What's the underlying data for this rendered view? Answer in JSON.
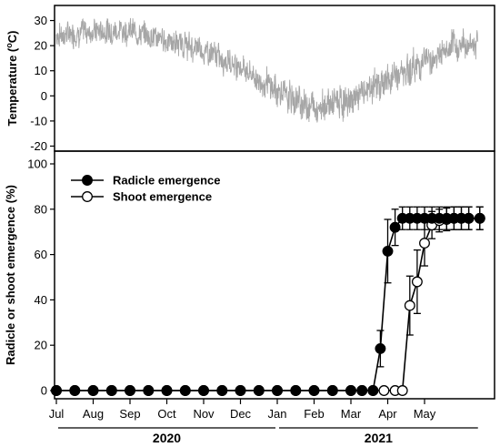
{
  "chart_data": [
    {
      "type": "line",
      "ylabel_base": "Temperature (",
      "ylabel_sup": "o",
      "ylabel_tail": "C)",
      "ylim": [
        -22,
        36
      ],
      "yticks": [
        "30",
        "20",
        "10",
        "0",
        "-10",
        "-20"
      ],
      "ytick_values": [
        30,
        20,
        10,
        0,
        -10,
        -20
      ],
      "color": "#a6a6a6",
      "series": [
        {
          "x_month": [
            0,
            0.5,
            1,
            1.5,
            2,
            2.5,
            3,
            3.5,
            4,
            4.5,
            5,
            5.5,
            6,
            6.5,
            7,
            7.5,
            8,
            8.5,
            9,
            9.5,
            10,
            10.5,
            11,
            11.5
          ],
          "mean": [
            24,
            25,
            26,
            26,
            26,
            24,
            22,
            20,
            18,
            15,
            12,
            6,
            2,
            -2,
            -4,
            -3,
            -2,
            3,
            6,
            10,
            14,
            17,
            20,
            22
          ],
          "amp": [
            9,
            9,
            9,
            9,
            9,
            9,
            9,
            9,
            9,
            9,
            9,
            9,
            11,
            11,
            11,
            11,
            11,
            11,
            11,
            11,
            11,
            11,
            11,
            11
          ]
        }
      ]
    },
    {
      "type": "line",
      "ylabel": "Radicle or shoot emergence (%)",
      "ylim": [
        0,
        100
      ],
      "yticks": [
        "100",
        "80",
        "60",
        "40",
        "20",
        "0"
      ],
      "ytick_values": [
        100,
        80,
        60,
        40,
        20,
        0
      ],
      "xlim": [
        0,
        11.5
      ],
      "x_ticks_month": [
        0,
        1,
        2,
        3,
        4,
        5,
        6,
        7,
        8,
        9,
        10
      ],
      "categories": [
        "Jul",
        "Aug",
        "Sep",
        "Oct",
        "Nov",
        "Dec",
        "Jan",
        "Feb",
        "Mar",
        "Apr",
        "May"
      ],
      "years": [
        {
          "label": "2020",
          "from": 0,
          "to": 6
        },
        {
          "label": "2021",
          "from": 6,
          "to": 11.5
        }
      ],
      "legend_position": "top-left",
      "series": [
        {
          "name": "Radicle emergence",
          "fill": "#000000",
          "x": [
            0,
            0.5,
            1,
            1.5,
            2,
            2.5,
            3,
            3.5,
            4,
            4.5,
            5,
            5.5,
            6,
            6.5,
            7,
            7.5,
            8,
            8.3,
            8.6,
            8.8,
            9.0,
            9.2,
            9.4,
            9.6,
            9.8,
            10.0,
            10.2,
            10.4,
            10.6,
            10.8,
            11.0,
            11.2,
            11.5
          ],
          "y": [
            0,
            0,
            0,
            0,
            0,
            0,
            0,
            0,
            0,
            0,
            0,
            0,
            0,
            0,
            0,
            0,
            0,
            0,
            0,
            18.5,
            61.5,
            72,
            76,
            76,
            76,
            76,
            76,
            76,
            76,
            76,
            76,
            76,
            76
          ],
          "err": [
            0,
            0,
            0,
            0,
            0,
            0,
            0,
            0,
            0,
            0,
            0,
            0,
            0,
            0,
            0,
            0,
            0,
            0,
            0,
            8,
            14,
            8,
            5,
            5,
            5,
            5,
            5,
            5,
            5,
            5,
            5,
            5,
            5
          ]
        },
        {
          "name": "Shoot emergence",
          "fill": "#ffffff",
          "x": [
            0,
            0.5,
            1,
            1.5,
            2,
            2.5,
            3,
            3.5,
            4,
            4.5,
            5,
            5.5,
            6,
            6.5,
            7,
            7.5,
            8,
            8.3,
            8.6,
            8.9,
            9.2,
            9.4,
            9.6,
            9.8,
            10.0,
            10.2,
            10.4,
            10.6,
            10.8,
            11.0,
            11.2,
            11.5
          ],
          "y": [
            0,
            0,
            0,
            0,
            0,
            0,
            0,
            0,
            0,
            0,
            0,
            0,
            0,
            0,
            0,
            0,
            0,
            0,
            0,
            0,
            0,
            0,
            37.5,
            48,
            65,
            73,
            75,
            75.5,
            76,
            76,
            76,
            76
          ],
          "err": [
            0,
            0,
            0,
            0,
            0,
            0,
            0,
            0,
            0,
            0,
            0,
            0,
            0,
            0,
            0,
            0,
            0,
            0,
            0,
            0,
            0,
            0,
            13,
            14,
            10,
            6,
            5,
            5,
            5,
            5,
            5,
            5
          ]
        }
      ]
    }
  ]
}
